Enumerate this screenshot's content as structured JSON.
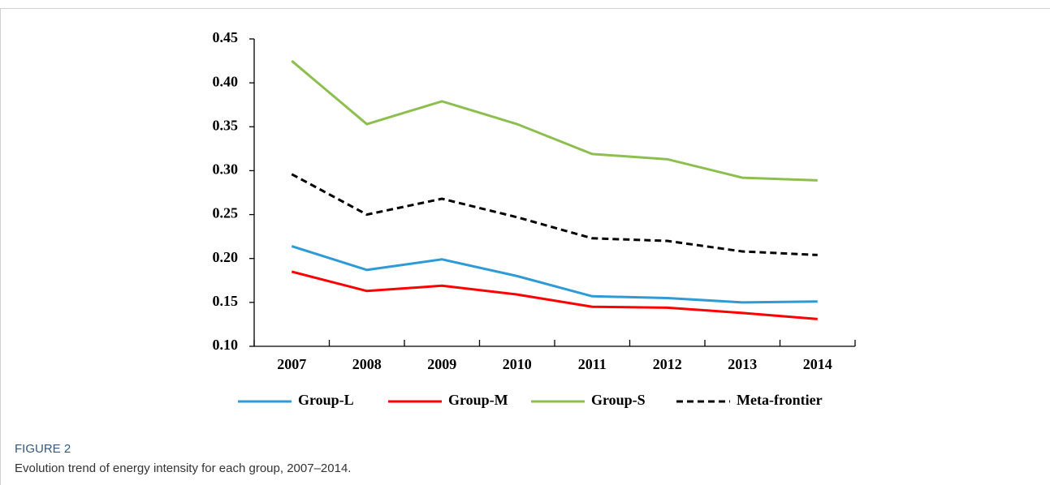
{
  "chart_data": {
    "type": "line",
    "categories": [
      "2007",
      "2008",
      "2009",
      "2010",
      "2011",
      "2012",
      "2013",
      "2014"
    ],
    "series": [
      {
        "name": "Group-L",
        "color": "#2e9bd6",
        "line_style": "solid",
        "values": [
          0.214,
          0.187,
          0.199,
          0.18,
          0.157,
          0.155,
          0.15,
          0.151
        ]
      },
      {
        "name": "Group-M",
        "color": "#ff0000",
        "line_style": "solid",
        "values": [
          0.185,
          0.163,
          0.169,
          0.159,
          0.145,
          0.144,
          0.138,
          0.131
        ]
      },
      {
        "name": "Group-S",
        "color": "#8cbf4f",
        "line_style": "solid",
        "values": [
          0.425,
          0.353,
          0.379,
          0.353,
          0.319,
          0.313,
          0.292,
          0.289
        ]
      },
      {
        "name": "Meta-frontier",
        "color": "#000000",
        "line_style": "dashed",
        "values": [
          0.296,
          0.25,
          0.268,
          0.247,
          0.223,
          0.22,
          0.208,
          0.204
        ]
      }
    ],
    "ylim": [
      0.1,
      0.45
    ],
    "yticks": [
      {
        "value": 0.1,
        "label": "0.10"
      },
      0.15,
      {
        "value": 0.2,
        "label": "0.20"
      },
      0.25,
      {
        "value": 0.3,
        "label": "0.30"
      },
      0.35,
      {
        "value": 0.4,
        "label": "0.40"
      },
      0.45
    ],
    "grid": false,
    "legend": "bottom"
  },
  "figure_label": "FIGURE 2",
  "caption": "Evolution trend of energy intensity for each group, 2007–2014."
}
